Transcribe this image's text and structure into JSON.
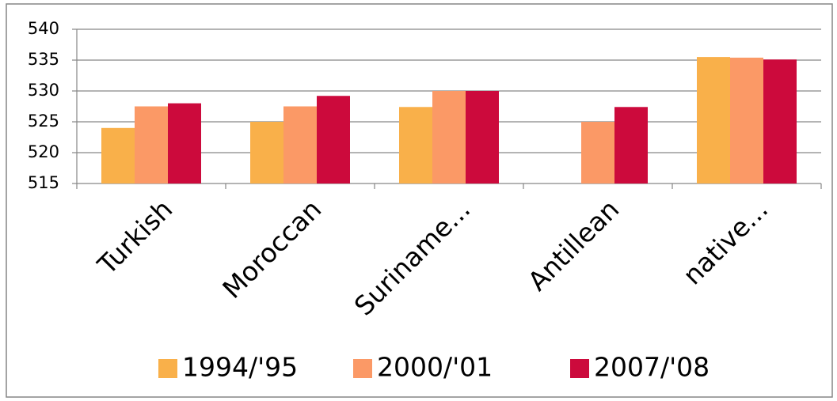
{
  "chart_data": {
    "type": "bar",
    "categories": [
      "Turkish",
      "Moroccan",
      "Suriname...",
      "Antillean",
      "native..."
    ],
    "series": [
      {
        "name": "1994/'95",
        "color": "#f9b04a",
        "values": [
          524,
          525,
          527.4,
          null,
          535.5
        ]
      },
      {
        "name": "2000/'01",
        "color": "#fb9966",
        "values": [
          527.5,
          527.5,
          530,
          525,
          535.4
        ]
      },
      {
        "name": "2007/'08",
        "color": "#cc0a3c",
        "values": [
          528,
          529.2,
          530,
          527.4,
          535.1
        ]
      }
    ],
    "ylim": [
      515,
      540
    ],
    "yticks": [
      515,
      520,
      525,
      530,
      535,
      540
    ],
    "grid": true,
    "legend": "bottom"
  }
}
